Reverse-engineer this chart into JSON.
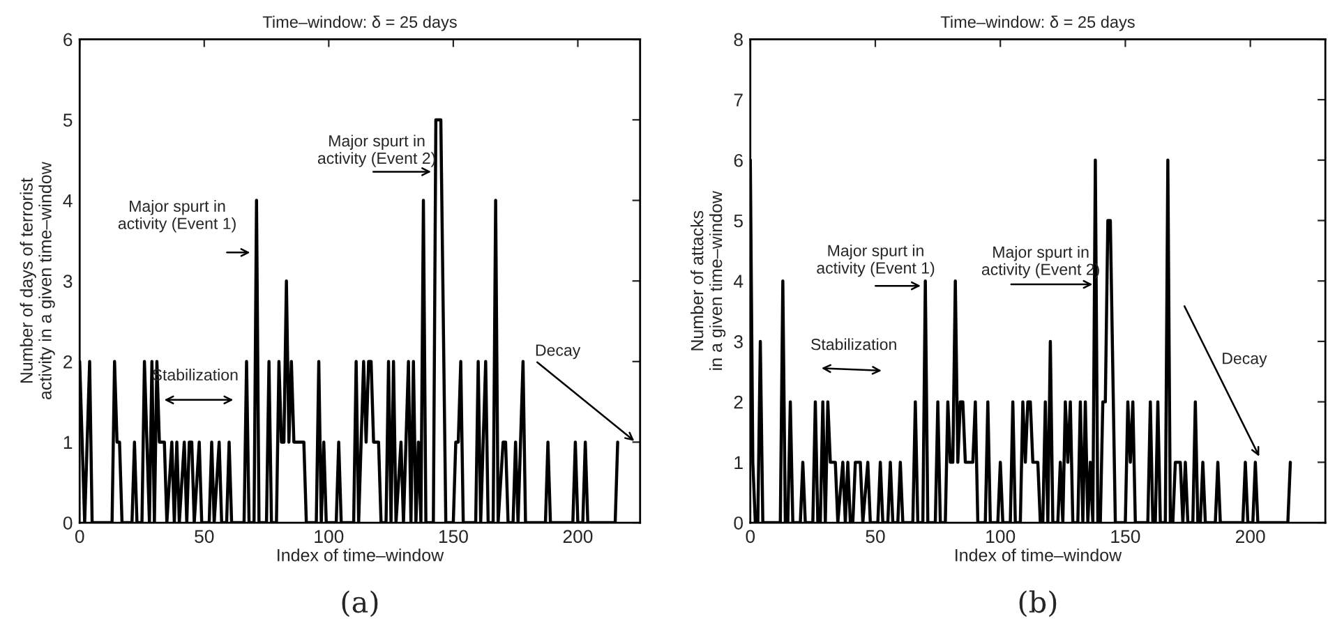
{
  "chart_data": [
    {
      "type": "line",
      "title": "Time–window: δ = 25 days",
      "xlabel": "Index of time–window",
      "ylabel": "Number of days of terrorist\nactivity in a given time–window",
      "xlim": [
        0,
        225
      ],
      "xticks": [
        0,
        50,
        100,
        150,
        200
      ],
      "ylim": [
        0,
        6
      ],
      "yticks": [
        0,
        1,
        2,
        3,
        4,
        5,
        6
      ],
      "grid": false,
      "legend": false,
      "marker": "none",
      "line_style": "solid",
      "series": [
        {
          "color": "#000000",
          "x": [
            0,
            2,
            4,
            5,
            13,
            14,
            15,
            16,
            17,
            21,
            22,
            23,
            25,
            26,
            28,
            29,
            30,
            31,
            32,
            34,
            35,
            37,
            38,
            39,
            40,
            42,
            43,
            44,
            45,
            46,
            48,
            49,
            52,
            53,
            54,
            56,
            57,
            59,
            60,
            61,
            66,
            67,
            68,
            70,
            71,
            72,
            75,
            76,
            77,
            79,
            80,
            81,
            82,
            83,
            84,
            85,
            86,
            90,
            91,
            95,
            96,
            97,
            98,
            99,
            103,
            104,
            105,
            110,
            111,
            112,
            114,
            115,
            116,
            117,
            118,
            120,
            121,
            123,
            124,
            125,
            126,
            127,
            129,
            130,
            132,
            133,
            134,
            135,
            136,
            137,
            138,
            139,
            142,
            143,
            145,
            147,
            150,
            151,
            152,
            153,
            154,
            159,
            160,
            161,
            163,
            164,
            166,
            167,
            168,
            170,
            171,
            172,
            174,
            175,
            176,
            178,
            179,
            187,
            188,
            189,
            198,
            199,
            200,
            202,
            203,
            204,
            215,
            216
          ],
          "values": [
            2,
            0,
            2,
            0,
            0,
            2,
            1,
            1,
            0,
            0,
            1,
            0,
            0,
            2,
            0,
            2,
            0,
            2,
            1,
            1,
            0,
            1,
            0,
            1,
            0,
            1,
            0,
            1,
            1,
            0,
            1,
            0,
            0,
            1,
            0,
            1,
            0,
            0,
            1,
            0,
            0,
            2,
            0,
            0,
            4,
            0,
            0,
            2,
            0,
            0,
            2,
            1,
            1,
            3,
            1,
            2,
            1,
            1,
            0,
            0,
            2,
            0,
            1,
            0,
            0,
            1,
            0,
            0,
            2,
            0,
            2,
            1,
            2,
            2,
            1,
            1,
            0,
            0,
            2,
            0,
            2,
            0,
            1,
            0,
            2,
            0,
            2,
            0,
            1,
            0,
            4,
            0,
            0,
            5,
            5,
            0,
            0,
            1,
            1,
            2,
            0,
            0,
            2,
            0,
            2,
            0,
            0,
            4,
            0,
            1,
            1,
            0,
            0,
            1,
            0,
            2,
            0,
            0,
            1,
            0,
            0,
            1,
            0,
            0,
            1,
            0,
            0,
            1
          ]
        }
      ],
      "annotations": [
        "Major spurt in\nactivity (Event 1)",
        "Major spurt in\nactivity (Event 2)",
        "Stabilization",
        "Decay",
        "(a)"
      ]
    },
    {
      "type": "line",
      "title": "Time–window: δ = 25 days",
      "xlabel": "Index of time–window",
      "ylabel": "Number of attacks\nin a given time–window",
      "xlim": [
        0,
        230
      ],
      "xticks": [
        0,
        50,
        100,
        150,
        200
      ],
      "ylim": [
        0,
        8
      ],
      "yticks": [
        0,
        1,
        2,
        3,
        4,
        5,
        6,
        7,
        8
      ],
      "grid": false,
      "legend": false,
      "marker": "none",
      "line_style": "solid",
      "series": [
        {
          "color": "#000000",
          "x": [
            0,
            1,
            2,
            3,
            4,
            5,
            12,
            13,
            14,
            15,
            16,
            17,
            20,
            21,
            22,
            25,
            26,
            27,
            28,
            29,
            30,
            31,
            32,
            34,
            35,
            37,
            38,
            39,
            40,
            41,
            42,
            43,
            44,
            45,
            47,
            48,
            51,
            52,
            53,
            55,
            56,
            57,
            59,
            60,
            61,
            65,
            66,
            67,
            69,
            70,
            71,
            74,
            75,
            76,
            78,
            79,
            80,
            81,
            82,
            83,
            84,
            85,
            86,
            89,
            90,
            91,
            94,
            95,
            96,
            99,
            100,
            101,
            104,
            105,
            106,
            108,
            109,
            110,
            111,
            112,
            113,
            115,
            116,
            117,
            118,
            119,
            120,
            121,
            123,
            124,
            125,
            126,
            127,
            128,
            129,
            131,
            132,
            133,
            134,
            135,
            136,
            137,
            138,
            139,
            140,
            141,
            142,
            143,
            144,
            146,
            150,
            151,
            152,
            153,
            154,
            159,
            160,
            161,
            162,
            163,
            164,
            166,
            167,
            168,
            169,
            170,
            172,
            173,
            174,
            175,
            177,
            178,
            179,
            180,
            181,
            182,
            186,
            187,
            188,
            197,
            198,
            199,
            201,
            202,
            203,
            215,
            216
          ],
          "values": [
            6,
            1,
            0,
            0,
            3,
            0,
            0,
            4,
            0,
            0,
            2,
            0,
            0,
            1,
            0,
            0,
            2,
            0,
            0,
            2,
            0,
            2,
            1,
            1,
            0,
            1,
            0,
            1,
            0,
            0,
            1,
            1,
            1,
            0,
            1,
            0,
            0,
            1,
            0,
            0,
            1,
            0,
            0,
            1,
            0,
            0,
            2,
            0,
            0,
            4,
            0,
            0,
            2,
            0,
            0,
            2,
            1,
            1,
            4,
            1,
            2,
            2,
            1,
            1,
            2,
            0,
            0,
            2,
            0,
            0,
            1,
            0,
            0,
            2,
            0,
            0,
            2,
            1,
            2,
            2,
            1,
            1,
            0,
            0,
            2,
            0,
            3,
            0,
            0,
            1,
            0,
            2,
            1,
            2,
            0,
            0,
            2,
            0,
            2,
            0,
            1,
            0,
            6,
            0,
            0,
            2,
            2,
            5,
            5,
            0,
            0,
            2,
            1,
            2,
            0,
            0,
            2,
            0,
            0,
            2,
            0,
            0,
            6,
            0,
            0,
            1,
            1,
            0,
            1,
            0,
            0,
            2,
            0,
            0,
            1,
            0,
            0,
            1,
            0,
            0,
            1,
            0,
            0,
            1,
            0,
            0,
            1
          ]
        }
      ],
      "annotations": [
        "Major spurt in\nactivity (Event 1)",
        "Major spurt in\nactivity (Event 2)",
        "Stabilization",
        "Decay",
        "(b)"
      ]
    }
  ]
}
